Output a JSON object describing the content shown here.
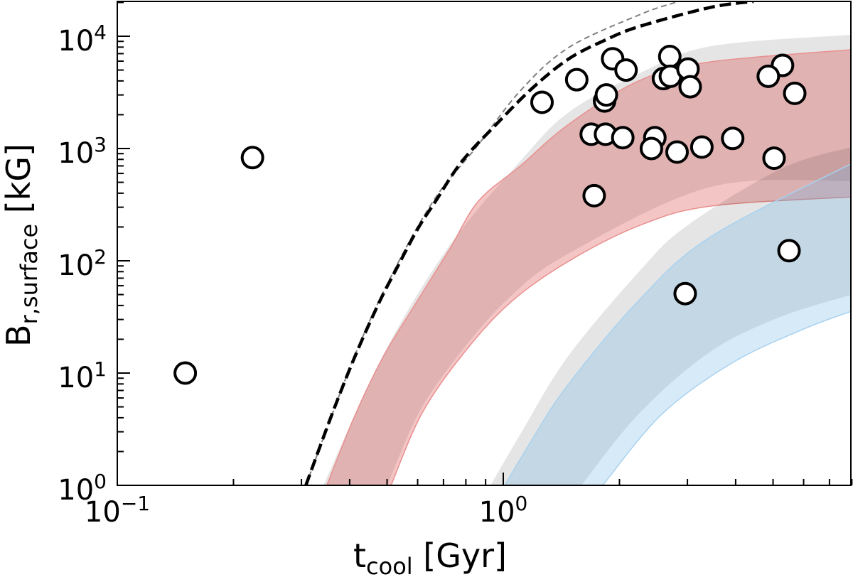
{
  "chart_data": {
    "type": "scatter",
    "title": "",
    "xlabel": {
      "main": "t",
      "sub": "cool",
      "unit": " [Gyr]"
    },
    "ylabel": {
      "main": "B",
      "sub": "r,surface",
      "unit": " [kG]"
    },
    "xscale": "log",
    "yscale": "log",
    "xlim": [
      0.1,
      8.0
    ],
    "ylim": [
      1,
      20400
    ],
    "grid": false,
    "x_ticks": [
      {
        "base": "10",
        "exp": "−1",
        "value": 0.1
      },
      {
        "base": "10",
        "exp": "0",
        "value": 1
      }
    ],
    "y_ticks": [
      {
        "base": "10",
        "exp": "0",
        "value": 1
      },
      {
        "base": "10",
        "exp": "1",
        "value": 10
      },
      {
        "base": "10",
        "exp": "2",
        "value": 100
      },
      {
        "base": "10",
        "exp": "3",
        "value": 1000
      },
      {
        "base": "10",
        "exp": "4",
        "value": 10000
      }
    ],
    "points": {
      "marker": "open-circle",
      "face_color": "#ffffff",
      "edge_color": "#000000",
      "x": [
        0.15,
        0.224,
        1.26,
        1.55,
        1.92,
        2.08,
        1.83,
        1.85,
        1.69,
        1.84,
        2.04,
        1.72,
        2.7,
        2.6,
        2.71,
        3.01,
        3.05,
        2.47,
        2.42,
        2.82,
        3.27,
        3.93,
        5.29,
        4.86,
        5.69,
        5.03,
        5.5,
        2.96
      ],
      "y": [
        10,
        830,
        2580,
        4100,
        6300,
        5000,
        2650,
        3000,
        1340,
        1340,
        1250,
        380,
        6600,
        4200,
        4400,
        5100,
        3550,
        1250,
        1000,
        930,
        1030,
        1230,
        5500,
        4400,
        3100,
        820,
        123,
        51
      ]
    },
    "lines": [
      {
        "style": "dashed",
        "color": "#808080",
        "x": [
          0.308,
          0.414,
          0.527,
          0.668,
          0.852,
          1.11,
          1.476,
          2.26,
          2.79
        ],
        "y": [
          1,
          14.8,
          88,
          366,
          1030,
          3300,
          7920,
          15600,
          20000
        ]
      },
      {
        "style": "dashed",
        "color": "#000000",
        "x": [
          0.308,
          0.36,
          0.414,
          0.476,
          0.527,
          0.599,
          0.668,
          0.782,
          0.967,
          1.195,
          1.476,
          1.826,
          2.26,
          3.45,
          4.45
        ],
        "y": [
          1,
          4.3,
          14.4,
          42,
          83,
          190,
          340,
          770,
          1690,
          3500,
          6270,
          9160,
          12270,
          18100,
          20400
        ]
      }
    ],
    "bands": [
      {
        "color": "#000000",
        "alpha": 0.1,
        "edge": "none",
        "upper": {
          "x": [
            0.342,
            0.491,
            0.727,
            1.11,
            1.476,
            2.26,
            3.45,
            7.99
          ],
          "y": [
            1,
            15,
            138,
            780,
            2100,
            4690,
            8150,
            10300
          ]
        },
        "lower": {
          "x": [
            0.501,
            0.606,
            0.772,
            1.03,
            1.476,
            3.45,
            7.99
          ],
          "y": [
            1,
            4.5,
            15,
            46,
            116,
            455,
            512
          ]
        }
      },
      {
        "color": "#d62728",
        "alpha": 0.27,
        "edge": "#e8908e",
        "upper": {
          "x": [
            0.349,
            0.414,
            0.491,
            0.599,
            0.727,
            0.862,
            1.11,
            1.476,
            2.26,
            3.45,
            7.99
          ],
          "y": [
            1,
            4.3,
            14.4,
            44,
            128,
            340,
            705,
            1640,
            4050,
            5920,
            7590
          ]
        },
        "lower": {
          "x": [
            0.512,
            0.614,
            0.782,
            1.039,
            1.476,
            2.26,
            3.45,
            7.99
          ],
          "y": [
            1,
            4.3,
            14.4,
            42,
            99,
            207,
            307,
            371
          ]
        }
      },
      {
        "color": "#000000",
        "alpha": 0.1,
        "edge": "none",
        "upper": {
          "x": [
            0.927,
            1.11,
            1.465,
            2.24,
            3.0,
            5.27,
            7.99
          ],
          "y": [
            1,
            2.9,
            13.8,
            79,
            207,
            665,
            1030
          ]
        },
        "lower": {
          "x": [
            1.594,
            2.24,
            3.42,
            5.22,
            7.99
          ],
          "y": [
            1,
            4.3,
            15.3,
            31.6,
            49.7
          ]
        }
      },
      {
        "color": "#6eb4e6",
        "alpha": 0.28,
        "edge": "#a8d2f0",
        "upper": {
          "x": [
            1.009,
            1.195,
            1.465,
            2.24,
            3.45,
            7.99
          ],
          "y": [
            1,
            2.65,
            7.7,
            44,
            164,
            736
          ]
        },
        "lower": {
          "x": [
            1.81,
            2.575,
            3.93,
            6.01,
            7.99
          ],
          "y": [
            1,
            4.3,
            12.4,
            24.7,
            35.6
          ]
        }
      }
    ]
  }
}
